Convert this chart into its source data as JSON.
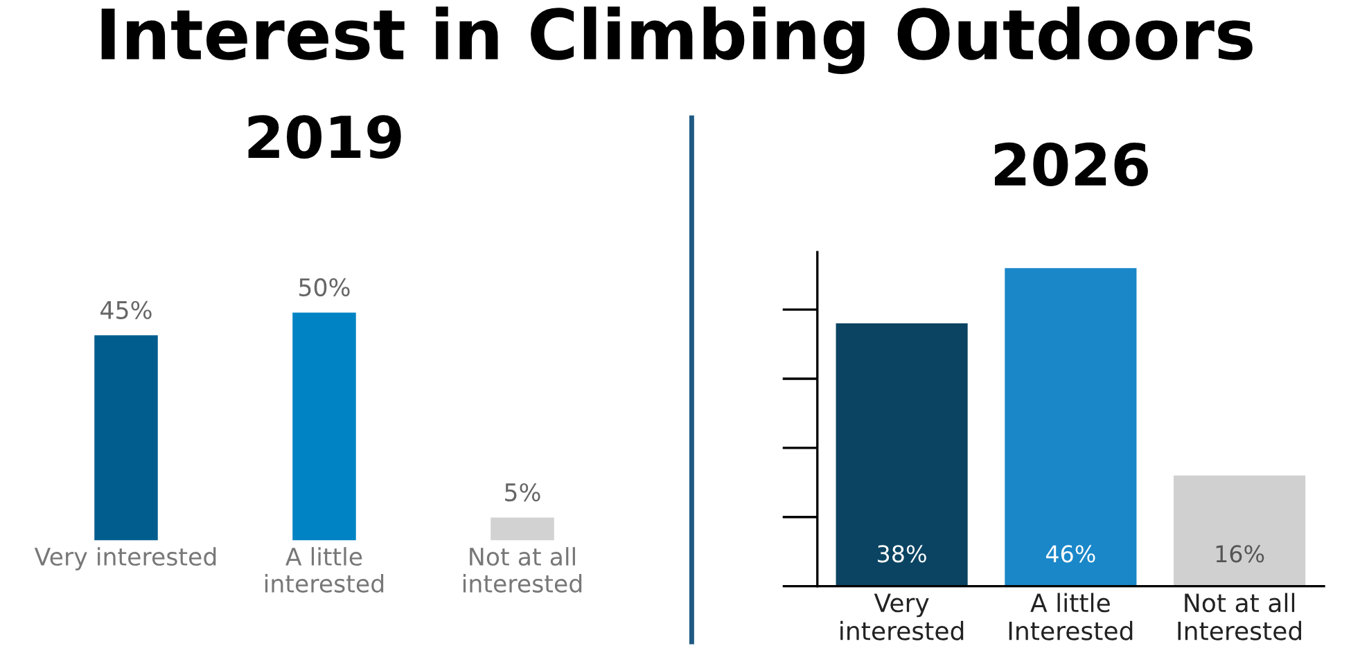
{
  "chart_data": [
    {
      "type": "bar",
      "title": "2019",
      "annotations": [
        "Interest in Climbing Outdoors"
      ],
      "categories": [
        "Very interested",
        "A little\ninterested",
        "Not at all\ninterested"
      ],
      "values": [
        45,
        50,
        5
      ],
      "value_labels": [
        "45%",
        "50%",
        "5%"
      ],
      "colors": [
        "#005d8e",
        "#0083c5",
        "#d2d2d2"
      ],
      "grid": false,
      "legend": false
    },
    {
      "type": "bar",
      "title": "2026",
      "categories": [
        "Very\ninterested",
        "A little\nInterested",
        "Not at all\nInterested"
      ],
      "values": [
        38,
        46,
        16
      ],
      "value_labels": [
        "38%",
        "46%",
        "16%"
      ],
      "colors": [
        "#0b4462",
        "#1a87c8",
        "#d0d0d0"
      ],
      "tick_labels": "x",
      "grid": false,
      "legend": false
    }
  ]
}
